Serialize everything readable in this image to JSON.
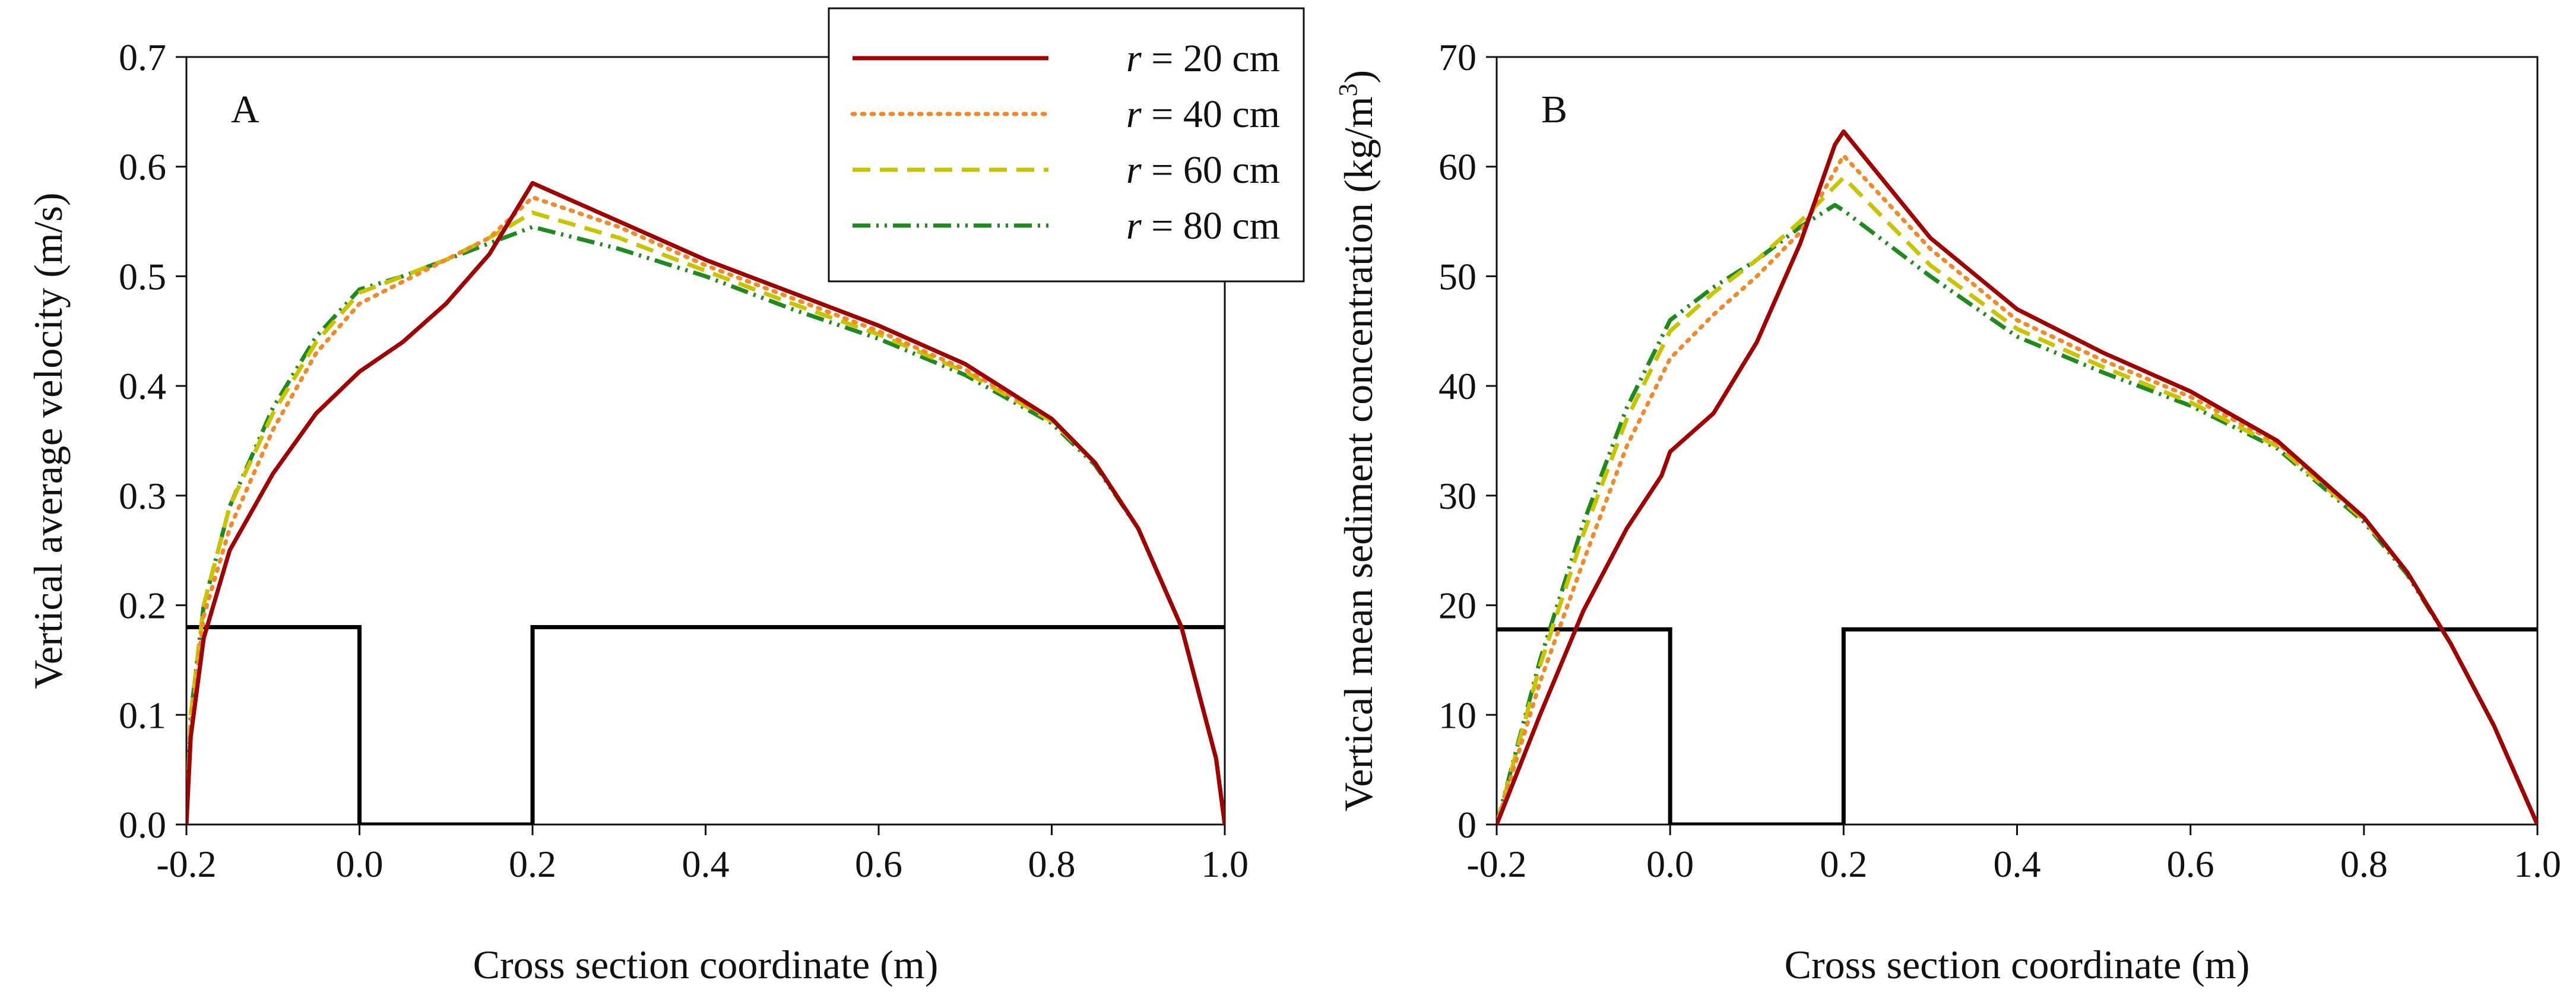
{
  "chart_data": [
    {
      "id": "A",
      "type": "line",
      "panel_label": "A",
      "xlabel": "Cross section coordinate (m)",
      "ylabel": "Vertical average velocity (m/s)",
      "xlim": [
        -0.2,
        1.0
      ],
      "ylim": [
        0.0,
        0.7
      ],
      "x_ticks": [
        -0.2,
        0.0,
        0.2,
        0.4,
        0.6,
        0.8,
        1.0
      ],
      "x_tick_labels": [
        "-0.2",
        "0.0",
        "0.2",
        "0.4",
        "0.6",
        "0.8",
        "1.0"
      ],
      "y_ticks": [
        0.0,
        0.1,
        0.2,
        0.3,
        0.4,
        0.5,
        0.6,
        0.7
      ],
      "y_tick_labels": [
        "0.0",
        "0.1",
        "0.2",
        "0.3",
        "0.4",
        "0.5",
        "0.6",
        "0.7"
      ],
      "channel_profile": {
        "x": [
          -0.2,
          0.0,
          0.0,
          0.2,
          0.2,
          1.0
        ],
        "y": [
          0.18,
          0.18,
          0.0,
          0.0,
          0.18,
          0.18
        ]
      },
      "series": [
        {
          "name": "r = 20 cm",
          "x": [
            -0.2,
            -0.195,
            -0.18,
            -0.15,
            -0.1,
            -0.05,
            0.0,
            0.05,
            0.1,
            0.15,
            0.2,
            0.3,
            0.4,
            0.5,
            0.6,
            0.7,
            0.8,
            0.85,
            0.9,
            0.95,
            0.97,
            0.99,
            1.0
          ],
          "y": [
            0.0,
            0.08,
            0.17,
            0.25,
            0.32,
            0.375,
            0.413,
            0.44,
            0.475,
            0.52,
            0.585,
            0.55,
            0.515,
            0.485,
            0.455,
            0.42,
            0.37,
            0.33,
            0.27,
            0.18,
            0.12,
            0.06,
            0.0
          ]
        },
        {
          "name": "r = 40 cm",
          "x": [
            -0.2,
            -0.195,
            -0.18,
            -0.15,
            -0.1,
            -0.05,
            0.0,
            0.05,
            0.1,
            0.15,
            0.2,
            0.3,
            0.4,
            0.5,
            0.6,
            0.7,
            0.8,
            0.85,
            0.9,
            0.95,
            0.97,
            0.99,
            1.0
          ],
          "y": [
            0.0,
            0.09,
            0.19,
            0.27,
            0.36,
            0.43,
            0.475,
            0.495,
            0.515,
            0.535,
            0.572,
            0.545,
            0.51,
            0.48,
            0.45,
            0.415,
            0.37,
            0.33,
            0.27,
            0.18,
            0.12,
            0.06,
            0.0
          ]
        },
        {
          "name": "r = 60 cm",
          "x": [
            -0.2,
            -0.195,
            -0.18,
            -0.15,
            -0.1,
            -0.05,
            0.0,
            0.05,
            0.1,
            0.15,
            0.2,
            0.3,
            0.4,
            0.5,
            0.6,
            0.7,
            0.8,
            0.85,
            0.9,
            0.95,
            0.97,
            0.99,
            1.0
          ],
          "y": [
            0.0,
            0.1,
            0.2,
            0.29,
            0.375,
            0.44,
            0.485,
            0.5,
            0.515,
            0.535,
            0.558,
            0.535,
            0.505,
            0.475,
            0.447,
            0.413,
            0.368,
            0.33,
            0.27,
            0.18,
            0.12,
            0.06,
            0.0
          ]
        },
        {
          "name": "r = 80 cm",
          "x": [
            -0.2,
            -0.195,
            -0.18,
            -0.15,
            -0.1,
            -0.05,
            0.0,
            0.05,
            0.1,
            0.15,
            0.2,
            0.3,
            0.4,
            0.5,
            0.6,
            0.7,
            0.8,
            0.85,
            0.9,
            0.95,
            0.97,
            0.99,
            1.0
          ],
          "y": [
            0.0,
            0.1,
            0.2,
            0.29,
            0.38,
            0.445,
            0.488,
            0.5,
            0.515,
            0.53,
            0.545,
            0.525,
            0.5,
            0.47,
            0.443,
            0.41,
            0.366,
            0.328,
            0.27,
            0.18,
            0.12,
            0.06,
            0.0
          ]
        }
      ]
    },
    {
      "id": "B",
      "type": "line",
      "panel_label": "B",
      "xlabel": "Cross section coordinate (m)",
      "ylabel": "Vertical mean sediment concentration (kg/m",
      "ylabel_superscript": "3",
      "ylabel_suffix": ")",
      "xlim": [
        -0.2,
        1.0
      ],
      "ylim": [
        0,
        70
      ],
      "x_ticks": [
        -0.2,
        0.0,
        0.2,
        0.4,
        0.6,
        0.8,
        1.0
      ],
      "x_tick_labels": [
        "-0.2",
        "0.0",
        "0.2",
        "0.4",
        "0.6",
        "0.8",
        "1.0"
      ],
      "y_ticks": [
        0,
        10,
        20,
        30,
        40,
        50,
        60,
        70
      ],
      "y_tick_labels": [
        "0",
        "10",
        "20",
        "30",
        "40",
        "50",
        "60",
        "70"
      ],
      "channel_profile": {
        "x": [
          -0.2,
          0.0,
          0.0,
          0.2,
          0.2,
          1.0
        ],
        "y": [
          17.8,
          17.8,
          0,
          0,
          17.8,
          17.8
        ]
      },
      "series": [
        {
          "name": "r = 20 cm",
          "x": [
            -0.2,
            -0.15,
            -0.1,
            -0.05,
            -0.01,
            0.0,
            0.05,
            0.1,
            0.15,
            0.19,
            0.2,
            0.3,
            0.4,
            0.5,
            0.6,
            0.7,
            0.8,
            0.85,
            0.9,
            0.95,
            1.0
          ],
          "y": [
            0,
            10,
            19.5,
            27,
            31.8,
            34,
            37.5,
            44,
            53,
            62,
            63.2,
            53.5,
            47,
            43,
            39.5,
            35,
            28,
            23,
            16.5,
            9,
            0
          ]
        },
        {
          "name": "r = 40 cm",
          "x": [
            -0.2,
            -0.15,
            -0.1,
            -0.05,
            0.0,
            0.05,
            0.1,
            0.15,
            0.2,
            0.3,
            0.4,
            0.5,
            0.6,
            0.7,
            0.8,
            0.85,
            0.9,
            0.95,
            1.0
          ],
          "y": [
            0,
            13,
            24,
            34.5,
            42.5,
            46.5,
            50,
            54,
            61,
            52.5,
            46,
            42.3,
            39,
            34.8,
            28,
            23,
            16.5,
            9,
            0
          ]
        },
        {
          "name": "r = 60 cm",
          "x": [
            -0.2,
            -0.15,
            -0.1,
            -0.05,
            0.0,
            0.05,
            0.1,
            0.15,
            0.2,
            0.3,
            0.4,
            0.5,
            0.6,
            0.7,
            0.8,
            0.85,
            0.9,
            0.95,
            1.0
          ],
          "y": [
            0,
            14.5,
            26.5,
            37,
            45,
            48.5,
            51.5,
            55,
            59,
            51,
            45.2,
            41.7,
            38.5,
            34.5,
            27.8,
            23,
            16.5,
            9,
            0
          ]
        },
        {
          "name": "r = 80 cm",
          "x": [
            -0.2,
            -0.15,
            -0.1,
            -0.05,
            0.0,
            0.05,
            0.1,
            0.15,
            0.19,
            0.2,
            0.3,
            0.4,
            0.5,
            0.6,
            0.7,
            0.8,
            0.85,
            0.9,
            0.95,
            1.0
          ],
          "y": [
            0,
            15,
            27.5,
            38,
            46,
            49,
            51.5,
            54.5,
            56.5,
            56,
            50,
            44.5,
            41.2,
            38.2,
            34.3,
            27.6,
            22.8,
            16.5,
            9,
            0
          ]
        }
      ]
    }
  ],
  "legend": {
    "location": "upper center between panels",
    "entries": [
      {
        "italic": "r",
        "label": " = 20 cm",
        "color": "#a00000",
        "style": "solid"
      },
      {
        "italic": "r",
        "label": " = 40 cm",
        "color": "#f08a2a",
        "style": "dotted"
      },
      {
        "italic": "r",
        "label": " = 60 cm",
        "color": "#c8c400",
        "style": "dashed"
      },
      {
        "italic": "r",
        "label": " = 80 cm",
        "color": "#1f8a1f",
        "style": "dash-dot-dot"
      }
    ]
  },
  "colors": {
    "axis": "#111111",
    "profile": "#000000"
  }
}
